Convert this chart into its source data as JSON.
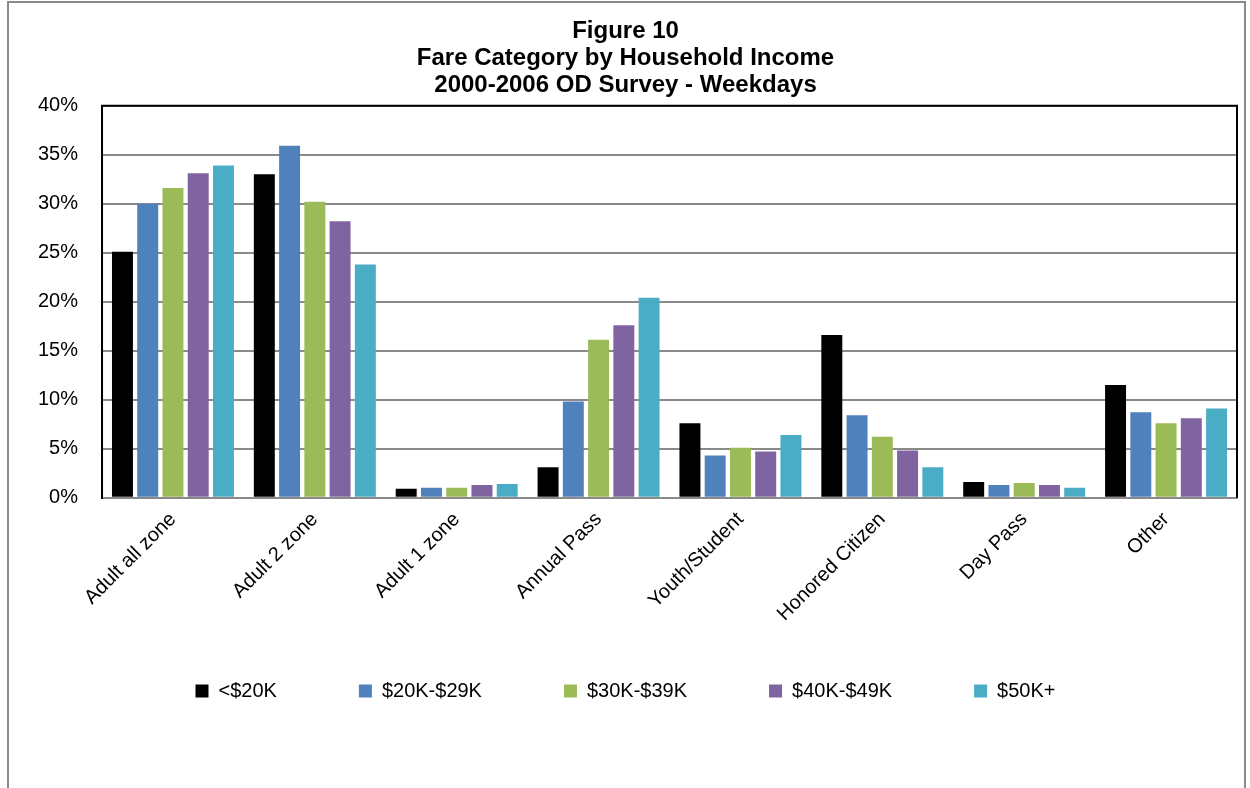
{
  "chart_data": {
    "type": "bar",
    "title": "Figure 10\nFare Category by Household Income\n2000-2006 OD Survey - Weekdays",
    "categories": [
      "Adult all zone",
      "Adult 2 zone",
      "Adult 1 zone",
      "Annual Pass",
      "Youth/Student",
      "Honored Citizen",
      "Day Pass",
      "Other"
    ],
    "series": [
      {
        "name": "<$20K",
        "color": "#000000",
        "values": [
          25.1,
          33.0,
          0.9,
          3.1,
          7.6,
          16.6,
          1.6,
          11.5
        ]
      },
      {
        "name": "$20K-$29K",
        "color": "#4f81bd",
        "values": [
          30.0,
          35.9,
          1.0,
          9.8,
          4.3,
          8.4,
          1.3,
          8.7
        ]
      },
      {
        "name": "$30K-$39K",
        "color": "#9bbb59",
        "values": [
          31.6,
          30.2,
          1.0,
          16.1,
          5.1,
          6.2,
          1.5,
          7.6
        ]
      },
      {
        "name": "$40K-$49K",
        "color": "#8064a2",
        "values": [
          33.1,
          28.2,
          1.3,
          17.6,
          4.7,
          4.8,
          1.3,
          8.1
        ]
      },
      {
        "name": "$50K+",
        "color": "#4bacc6",
        "values": [
          33.9,
          23.8,
          1.4,
          20.4,
          6.4,
          3.1,
          1.0,
          9.1
        ]
      }
    ],
    "ylim": [
      0,
      40
    ],
    "yticks": [
      {
        "value": 0,
        "label": "0%"
      },
      {
        "value": 5,
        "label": "5%"
      },
      {
        "value": 10,
        "label": "10%"
      },
      {
        "value": 15,
        "label": "15%"
      },
      {
        "value": 20,
        "label": "20%"
      },
      {
        "value": 25,
        "label": "25%"
      },
      {
        "value": 30,
        "label": "30%"
      },
      {
        "value": 35,
        "label": "35%"
      },
      {
        "value": 40,
        "label": "40%"
      }
    ],
    "grid": "y",
    "legend": "bottom"
  }
}
